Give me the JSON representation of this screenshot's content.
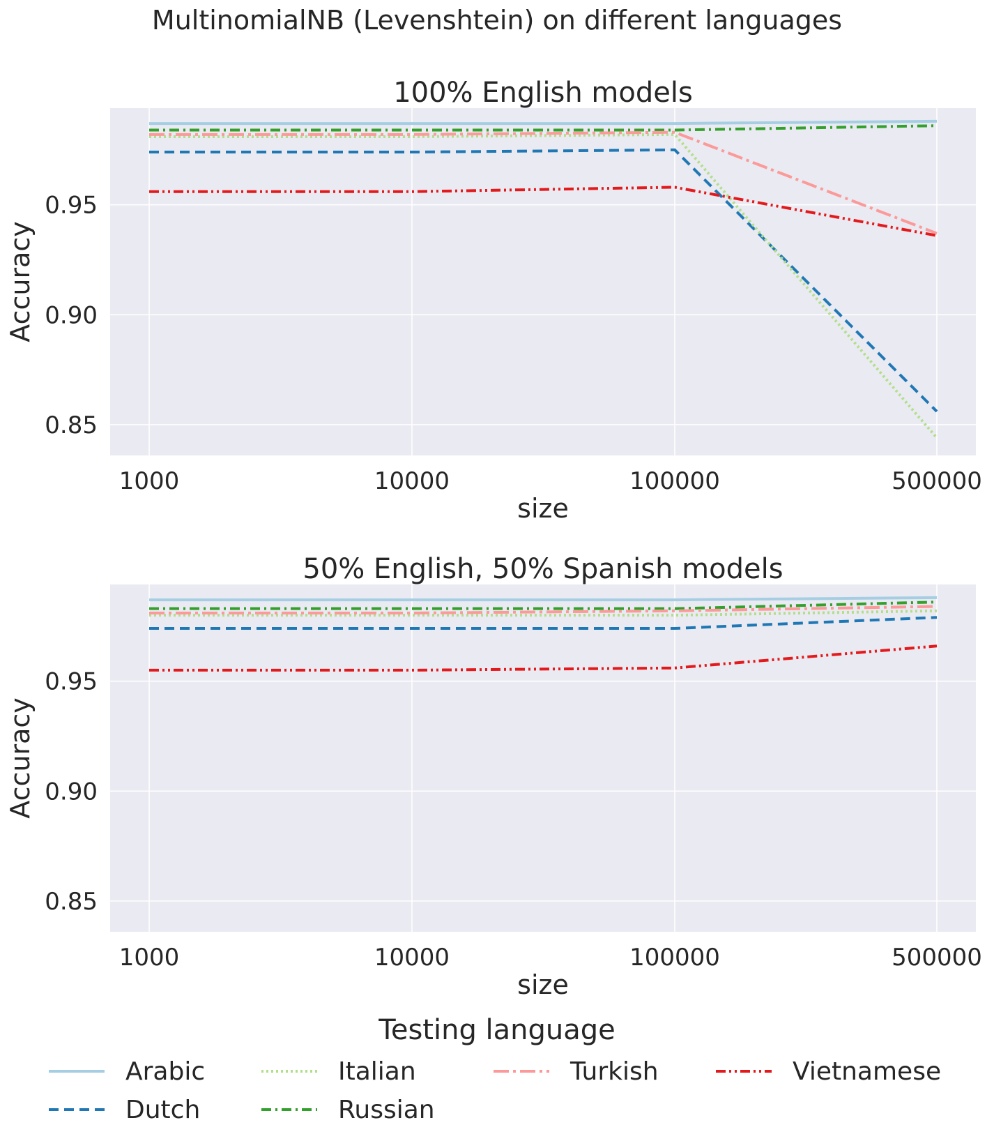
{
  "figure": {
    "suptitle": "MultinomialNB (Levenshtein) on different languages",
    "legend_title": "Testing language"
  },
  "series_styles": {
    "Arabic": {
      "color": "#a6cee3",
      "dash": ""
    },
    "Dutch": {
      "color": "#1f78b4",
      "dash": "14 8"
    },
    "Italian": {
      "color": "#b2df8a",
      "dash": "3 4"
    },
    "Russian": {
      "color": "#33a02c",
      "dash": "14 6 3 6"
    },
    "Turkish": {
      "color": "#fb9a99",
      "dash": "22 6 4 6"
    },
    "Vietnamese": {
      "color": "#e31a1c",
      "dash": "14 5 3 5 3 5"
    }
  },
  "chart_data": [
    {
      "type": "line",
      "title": "100% English models",
      "xlabel": "size",
      "ylabel": "Accuracy",
      "x": [
        "1000",
        "10000",
        "100000",
        "500000"
      ],
      "ylim": [
        0.836,
        0.994
      ],
      "yticks": [
        "0.95",
        "0.90",
        "0.85"
      ],
      "grid": true,
      "series": [
        {
          "name": "Arabic",
          "values": [
            0.987,
            0.987,
            0.987,
            0.988
          ]
        },
        {
          "name": "Dutch",
          "values": [
            0.974,
            0.974,
            0.975,
            0.856
          ]
        },
        {
          "name": "Italian",
          "values": [
            0.981,
            0.981,
            0.982,
            0.844
          ]
        },
        {
          "name": "Russian",
          "values": [
            0.984,
            0.984,
            0.984,
            0.986
          ]
        },
        {
          "name": "Turkish",
          "values": [
            0.982,
            0.982,
            0.983,
            0.937
          ]
        },
        {
          "name": "Vietnamese",
          "values": [
            0.956,
            0.956,
            0.958,
            0.936
          ]
        }
      ]
    },
    {
      "type": "line",
      "title": "50% English, 50% Spanish models",
      "xlabel": "size",
      "ylabel": "Accuracy",
      "x": [
        "1000",
        "10000",
        "100000",
        "500000"
      ],
      "ylim": [
        0.836,
        0.994
      ],
      "yticks": [
        "0.95",
        "0.90",
        "0.85"
      ],
      "grid": true,
      "series": [
        {
          "name": "Arabic",
          "values": [
            0.987,
            0.987,
            0.987,
            0.988
          ]
        },
        {
          "name": "Dutch",
          "values": [
            0.974,
            0.974,
            0.974,
            0.979
          ]
        },
        {
          "name": "Italian",
          "values": [
            0.98,
            0.98,
            0.98,
            0.982
          ]
        },
        {
          "name": "Russian",
          "values": [
            0.983,
            0.983,
            0.983,
            0.986
          ]
        },
        {
          "name": "Turkish",
          "values": [
            0.981,
            0.981,
            0.982,
            0.984
          ]
        },
        {
          "name": "Vietnamese",
          "values": [
            0.955,
            0.955,
            0.956,
            0.966
          ]
        }
      ]
    }
  ],
  "legend": {
    "columns": [
      [
        "Arabic",
        "Dutch"
      ],
      [
        "Italian",
        "Russian"
      ],
      [
        "Turkish"
      ],
      [
        "Vietnamese"
      ]
    ]
  }
}
